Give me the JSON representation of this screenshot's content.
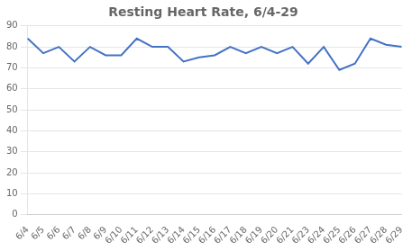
{
  "chart_data": {
    "type": "line",
    "title": "Resting Heart Rate, 6/4-29",
    "categories": [
      "6/4",
      "6/5",
      "6/6",
      "6/7",
      "6/8",
      "6/9",
      "6/10",
      "6/11",
      "6/12",
      "6/13",
      "6/14",
      "6/15",
      "6/16",
      "6/17",
      "6/18",
      "6/19",
      "6/20",
      "6/21",
      "6/23",
      "6/24",
      "6/25",
      "6/26",
      "6/27",
      "6/28",
      "6/29"
    ],
    "values": [
      84,
      77,
      80,
      73,
      80,
      76,
      76,
      84,
      80,
      80,
      73,
      75,
      76,
      80,
      77,
      80,
      77,
      80,
      72,
      80,
      69,
      72,
      84,
      81,
      80
    ],
    "color": "#4472C4",
    "ylim": [
      0,
      90
    ],
    "yticks": [
      0,
      10,
      20,
      30,
      40,
      50,
      60,
      70,
      80,
      90
    ],
    "grid": true
  }
}
